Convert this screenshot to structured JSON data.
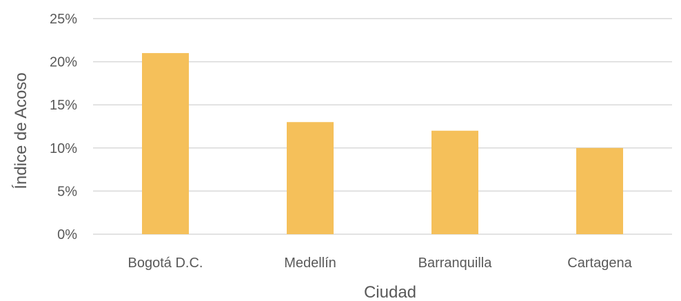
{
  "chart_data": {
    "type": "bar",
    "title": "",
    "categories": [
      "Bogotá D.C.",
      "Medellín",
      "Barranquilla",
      "Cartagena"
    ],
    "values": [
      0.21,
      0.13,
      0.12,
      0.1
    ],
    "xlabel": "Ciudad",
    "ylabel": "Índice de Acoso",
    "ylim": [
      0,
      0.25
    ],
    "yticks": [
      "0%",
      "5%",
      "10%",
      "15%",
      "20%",
      "25%"
    ],
    "grid": true,
    "legend": "none",
    "bar_color": "#F5C05A",
    "grid_color": "#D9D9D9",
    "text_color": "#595959"
  }
}
